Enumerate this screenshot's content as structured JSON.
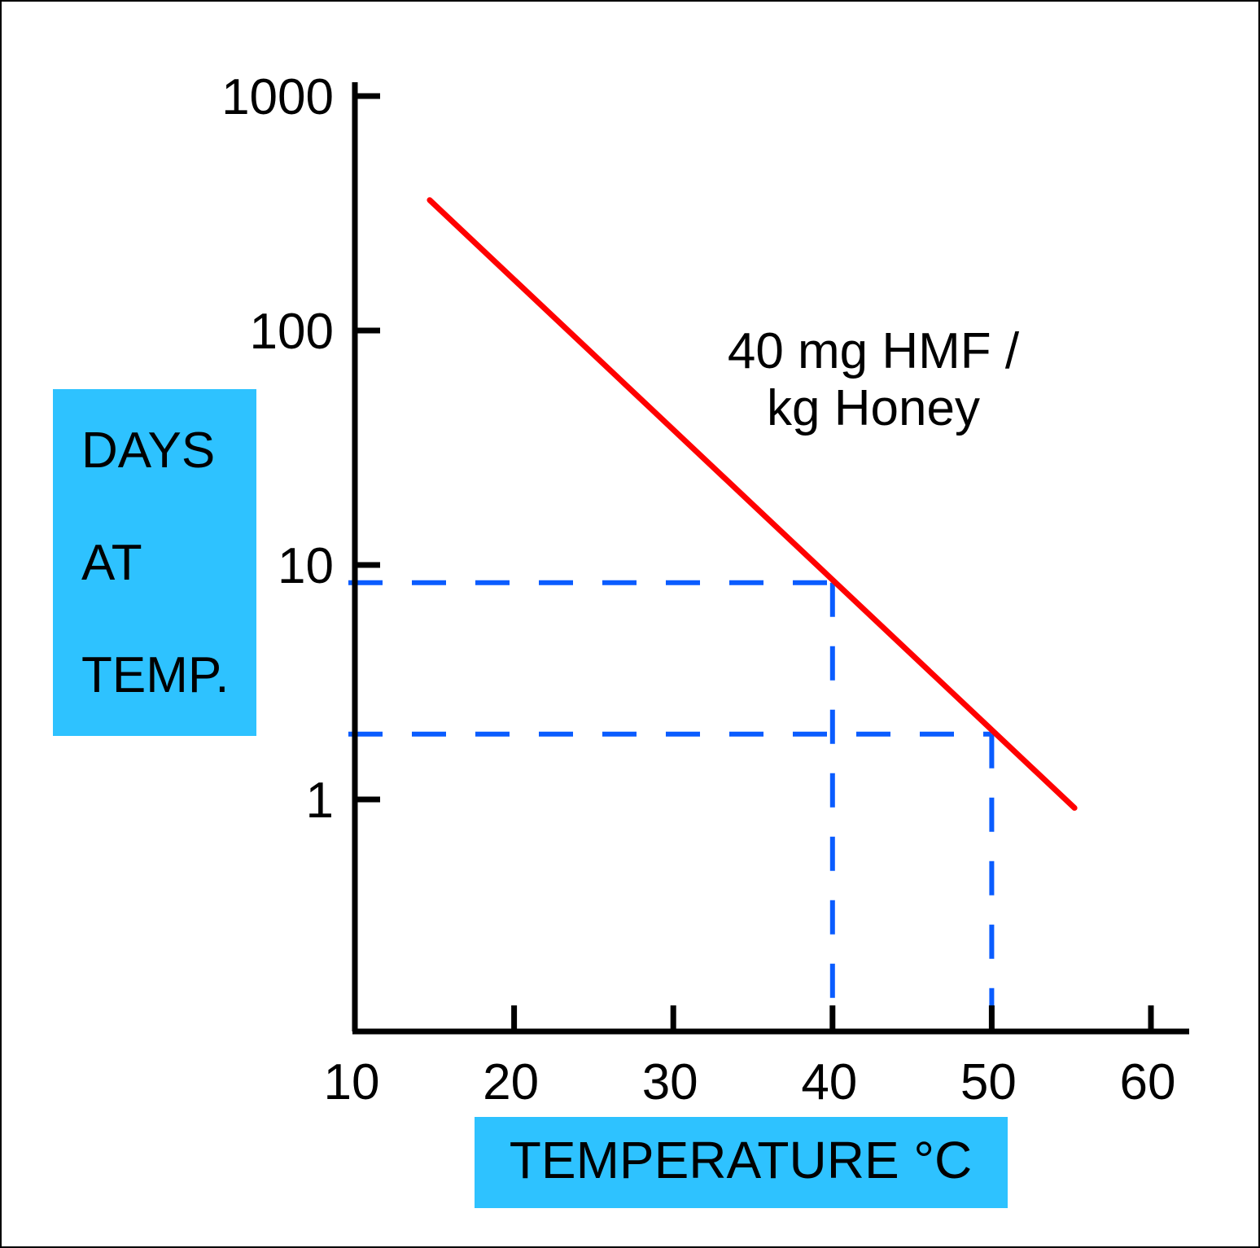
{
  "chart_data": {
    "type": "line",
    "title": "",
    "xlabel": "TEMPERATURE °C",
    "ylabel_lines": [
      "DAYS",
      "AT",
      "TEMP."
    ],
    "x_scale": "linear",
    "y_scale": "log",
    "xlim": [
      10,
      60
    ],
    "ylim": [
      0.1,
      1000
    ],
    "x_ticks": [
      10,
      20,
      30,
      40,
      50,
      60
    ],
    "x_tick_labels": [
      "10",
      "20",
      "30",
      "40",
      "50",
      "60"
    ],
    "y_ticks": [
      1,
      10,
      100,
      1000
    ],
    "y_tick_labels": [
      "1",
      "10",
      "100",
      "1000"
    ],
    "grid": false,
    "series": [
      {
        "x": [
          14.7,
          55.2
        ],
        "y": [
          360,
          0.92
        ],
        "color": "#ff0000"
      }
    ],
    "reference_lines": [
      {
        "x": 40,
        "y": 8.4,
        "color": "#0a5cff",
        "style": "dashed"
      },
      {
        "x": 50,
        "y": 1.9,
        "color": "#0a5cff",
        "style": "dashed"
      }
    ],
    "annotation_lines": [
      "40 mg HMF /",
      "kg Honey"
    ],
    "label_box_color": "#2ec2ff"
  }
}
